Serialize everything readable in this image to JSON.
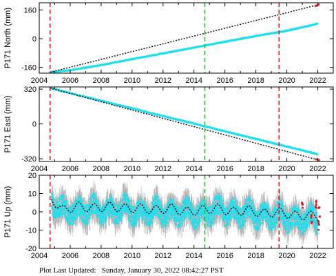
{
  "chart_data": [
    {
      "type": "scatter",
      "ylabel": "P171 North (mm)",
      "xlim": [
        2004.0,
        2023.0
      ],
      "ylim": [
        -192,
        200
      ],
      "xticks": [
        2004,
        2006,
        2008,
        2010,
        2012,
        2014,
        2016,
        2018,
        2020,
        2022
      ],
      "yticks": [
        -160,
        0,
        160
      ],
      "vlines": [
        {
          "x": 2004.7,
          "color": "#e8141c"
        },
        {
          "x": 2014.7,
          "color": "#22c12a"
        },
        {
          "x": 2019.5,
          "color": "#e8141c"
        }
      ],
      "series": [
        {
          "kind": "observations",
          "color": "#1de0f0",
          "x": [
            2004.7,
            2006.0,
            2008.0,
            2010.0,
            2012.0,
            2014.0,
            2016.0,
            2018.0,
            2020.0,
            2021.5,
            2022.0
          ],
          "y": [
            -187,
            -176,
            -147,
            -114,
            -82,
            -50,
            -17,
            15,
            44,
            73,
            84
          ]
        },
        {
          "kind": "model",
          "color": "#000000",
          "x": [
            2004.7,
            2022.0
          ],
          "y": [
            -187,
            188
          ]
        },
        {
          "kind": "recent",
          "color": "#dd1a1a",
          "x": [
            2021.9,
            2022.05
          ],
          "y": [
            184,
            190
          ]
        }
      ]
    },
    {
      "type": "scatter",
      "ylabel": "P171 East (mm)",
      "xlim": [
        2004.0,
        2023.0
      ],
      "ylim": [
        -345,
        340
      ],
      "xticks": [
        2004,
        2006,
        2008,
        2010,
        2012,
        2014,
        2016,
        2018,
        2020,
        2022
      ],
      "yticks": [
        -320,
        0,
        320
      ],
      "vlines": [
        {
          "x": 2004.7,
          "color": "#e8141c"
        },
        {
          "x": 2014.7,
          "color": "#22c12a"
        },
        {
          "x": 2019.5,
          "color": "#e8141c"
        }
      ],
      "series": [
        {
          "kind": "observations",
          "color": "#1de0f0",
          "x": [
            2004.7,
            2006.0,
            2008.0,
            2010.0,
            2012.0,
            2014.0,
            2016.0,
            2018.0,
            2020.0,
            2022.0
          ],
          "y": [
            330,
            283,
            212,
            143,
            72,
            3,
            -68,
            -138,
            -208,
            -278
          ]
        },
        {
          "kind": "model",
          "color": "#000000",
          "x": [
            2004.7,
            2022.0
          ],
          "y": [
            330,
            -330
          ]
        },
        {
          "kind": "recent",
          "color": "#dd1a1a",
          "x": [
            2021.9,
            2022.05
          ],
          "y": [
            -326,
            -332
          ]
        }
      ]
    },
    {
      "type": "scatter",
      "ylabel": "P171 Up (mm)",
      "xlim": [
        2004.0,
        2023.0
      ],
      "ylim": [
        -20,
        20
      ],
      "xticks": [
        2004,
        2006,
        2008,
        2010,
        2012,
        2014,
        2016,
        2018,
        2020,
        2022
      ],
      "yticks": [
        -20,
        -10,
        0,
        10,
        20
      ],
      "vlines": [
        {
          "x": 2004.7,
          "color": "#e8141c"
        },
        {
          "x": 2014.7,
          "color": "#22c12a"
        },
        {
          "x": 2019.5,
          "color": "#e8141c"
        }
      ],
      "series": [
        {
          "kind": "observations",
          "color": "#1de0f0",
          "x": [
            2004.8,
            2005.5,
            2006.5,
            2007.5,
            2008.5,
            2009.5,
            2010.5,
            2011.5,
            2012.5,
            2013.5,
            2014.5,
            2015.5,
            2016.5,
            2017.5,
            2018.5,
            2019.5,
            2020.5,
            2021.5,
            2022.0
          ],
          "y": [
            9,
            4,
            3,
            5,
            3,
            5,
            2,
            4,
            2,
            3,
            1,
            5,
            2,
            3,
            0,
            2,
            -2,
            0,
            -1
          ]
        },
        {
          "kind": "model",
          "color": "#000000",
          "x": [
            2004.8,
            2005.5,
            2006.5,
            2007.5,
            2008.5,
            2009.5,
            2010.5,
            2011.5,
            2012.5,
            2013.5,
            2014.5,
            2015.5,
            2016.5,
            2017.5,
            2018.5,
            2019.5,
            2020.5,
            2021.5,
            2022.0
          ],
          "y": [
            8,
            2,
            4,
            3,
            4,
            3,
            3,
            2,
            3,
            1,
            2,
            3,
            1,
            2,
            0,
            1,
            -1,
            -1,
            -1
          ]
        },
        {
          "kind": "recent",
          "color": "#dd1a1a",
          "x": [
            2021.0,
            2021.6,
            2021.9,
            2022.05,
            2022.1
          ],
          "y": [
            3,
            -4,
            5,
            -7,
            0
          ]
        }
      ]
    }
  ],
  "footer": {
    "text": "Plot Last Updated:   Sunday, January 30, 2022 08:42:27 PST"
  }
}
